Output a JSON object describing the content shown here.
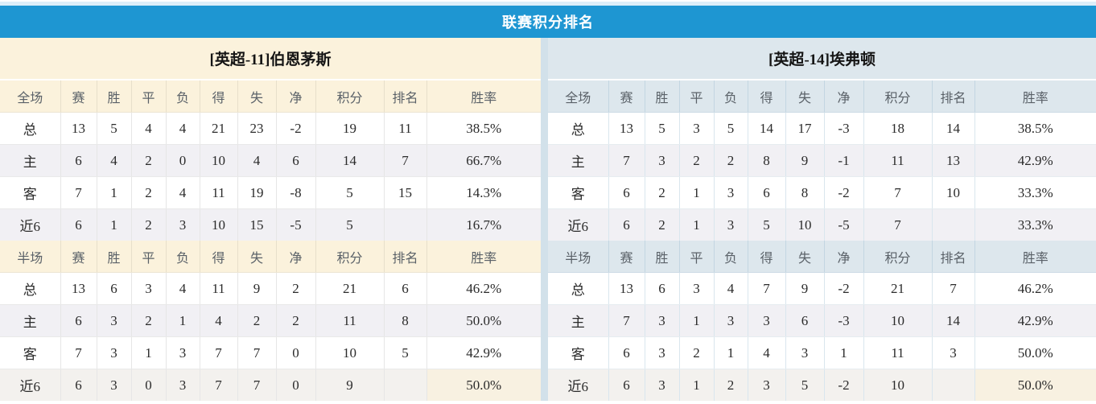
{
  "title": "联赛积分排名",
  "colors": {
    "titlebar_blue": "#1e96d2",
    "left_header_bg": "#fbf2dc",
    "right_header_bg": "#dde7ed",
    "points_red": "#ea4538",
    "rank_blue": "#4a82c4",
    "home_label_red": "#c4393a",
    "away_label_blue": "#5b55c9",
    "alt_row_bg": "#f1f0f4"
  },
  "columns": {
    "full_label": "全场",
    "half_label": "半场",
    "stats": [
      "赛",
      "胜",
      "平",
      "负",
      "得",
      "失",
      "净"
    ],
    "points": "积分",
    "rank": "排名",
    "rate": "胜率"
  },
  "teams": [
    {
      "name": "[英超-11]伯恩茅斯",
      "full": [
        {
          "label": "总",
          "stats": [
            13,
            5,
            4,
            4,
            21,
            23,
            -2
          ],
          "points": 19,
          "rank": "11",
          "rate": "38.5%"
        },
        {
          "label": "主",
          "stats": [
            6,
            4,
            2,
            0,
            10,
            4,
            6
          ],
          "points": 14,
          "rank": "7",
          "rate": "66.7%"
        },
        {
          "label": "客",
          "stats": [
            7,
            1,
            2,
            4,
            11,
            19,
            -8
          ],
          "points": 5,
          "rank": "15",
          "rate": "14.3%"
        },
        {
          "label": "近6",
          "stats": [
            6,
            1,
            2,
            3,
            10,
            15,
            -5
          ],
          "points": 5,
          "rank": "",
          "rate": "16.7%"
        }
      ],
      "half": [
        {
          "label": "总",
          "stats": [
            13,
            6,
            3,
            4,
            11,
            9,
            2
          ],
          "points": 21,
          "rank": "6",
          "rate": "46.2%"
        },
        {
          "label": "主",
          "stats": [
            6,
            3,
            2,
            1,
            4,
            2,
            2
          ],
          "points": 11,
          "rank": "8",
          "rate": "50.0%"
        },
        {
          "label": "客",
          "stats": [
            7,
            3,
            1,
            3,
            7,
            7,
            0
          ],
          "points": 10,
          "rank": "5",
          "rate": "42.9%"
        },
        {
          "label": "近6",
          "stats": [
            6,
            3,
            0,
            3,
            7,
            7,
            0
          ],
          "points": 9,
          "rank": "",
          "rate": "50.0%"
        }
      ]
    },
    {
      "name": "[英超-14]埃弗顿",
      "full": [
        {
          "label": "总",
          "stats": [
            13,
            5,
            3,
            5,
            14,
            17,
            -3
          ],
          "points": 18,
          "rank": "14",
          "rate": "38.5%"
        },
        {
          "label": "主",
          "stats": [
            7,
            3,
            2,
            2,
            8,
            9,
            -1
          ],
          "points": 11,
          "rank": "13",
          "rate": "42.9%"
        },
        {
          "label": "客",
          "stats": [
            6,
            2,
            1,
            3,
            6,
            8,
            -2
          ],
          "points": 7,
          "rank": "10",
          "rate": "33.3%"
        },
        {
          "label": "近6",
          "stats": [
            6,
            2,
            1,
            3,
            5,
            10,
            -5
          ],
          "points": 7,
          "rank": "",
          "rate": "33.3%"
        }
      ],
      "half": [
        {
          "label": "总",
          "stats": [
            13,
            6,
            3,
            4,
            7,
            9,
            -2
          ],
          "points": 21,
          "rank": "7",
          "rate": "46.2%"
        },
        {
          "label": "主",
          "stats": [
            7,
            3,
            1,
            3,
            3,
            6,
            -3
          ],
          "points": 10,
          "rank": "14",
          "rate": "42.9%"
        },
        {
          "label": "客",
          "stats": [
            6,
            3,
            2,
            1,
            4,
            3,
            1
          ],
          "points": 11,
          "rank": "3",
          "rate": "50.0%"
        },
        {
          "label": "近6",
          "stats": [
            6,
            3,
            1,
            2,
            3,
            5,
            -2
          ],
          "points": 10,
          "rank": "",
          "rate": "50.0%"
        }
      ]
    }
  ]
}
